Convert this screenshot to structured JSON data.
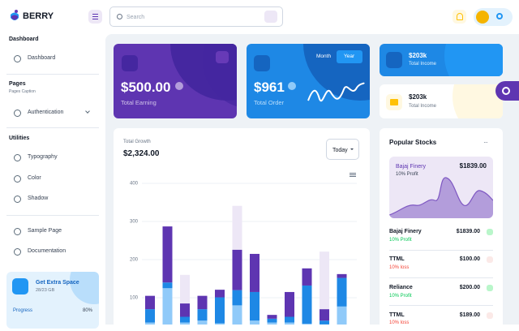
{
  "header": {
    "brand": "BERRY",
    "search_placeholder": "Search"
  },
  "sidebar": {
    "groups": [
      {
        "title": "Dashboard",
        "items": [
          "Dashboard"
        ]
      },
      {
        "title": "Pages",
        "caption": "Pages Caption",
        "items": [
          "Authentication"
        ]
      },
      {
        "title": "Utilities",
        "items": [
          "Typography",
          "Color",
          "Shadow"
        ]
      },
      {
        "items": [
          "Sample Page",
          "Documentation"
        ]
      }
    ],
    "promo": {
      "title": "Get Extra Space",
      "detail": "28/23 GB",
      "progress_label": "Progress",
      "progress_value": "80%"
    }
  },
  "cards": {
    "earning": {
      "value": "$500.00",
      "label": "Total Earning"
    },
    "order": {
      "value": "$961",
      "label": "Total Order",
      "toggle": [
        "Month",
        "Year"
      ]
    },
    "income": [
      {
        "value": "$203k",
        "label": "Total Income"
      },
      {
        "value": "$203k",
        "label": "Total Income"
      }
    ]
  },
  "growth": {
    "label": "Total Growth",
    "value": "$2,324.00",
    "period": "Today"
  },
  "chart_data": {
    "type": "stacked-bar",
    "ylim": [
      0,
      400
    ],
    "yticks": [
      100,
      200,
      300,
      400
    ],
    "grid": true,
    "series": [
      {
        "color": "#90caf9",
        "values": [
          35,
          125,
          35,
          40,
          33,
          80,
          40,
          35,
          35,
          32,
          30,
          77
        ]
      },
      {
        "color": "#1e88e5",
        "values": [
          35,
          15,
          15,
          30,
          68,
          40,
          75,
          10,
          15,
          100,
          10,
          75
        ]
      },
      {
        "color": "#5e35b1",
        "values": [
          35,
          147,
          35,
          35,
          20,
          106,
          100,
          10,
          65,
          45,
          30,
          10
        ]
      },
      {
        "color": "#ede7f6",
        "values": [
          0,
          0,
          75,
          0,
          0,
          115,
          0,
          0,
          0,
          0,
          151,
          0
        ]
      }
    ]
  },
  "stocks": {
    "title": "Popular Stocks",
    "featured": {
      "name": "Bajaj Finery",
      "price": "$1839.00",
      "change": "10% Profit"
    },
    "items": [
      {
        "name": "Bajaj Finery",
        "price": "$1839.00",
        "change": "10% Profit"
      },
      {
        "name": "TTML",
        "price": "$100.00",
        "change": "10% loss"
      },
      {
        "name": "Reliance",
        "price": "$200.00",
        "change": "10% Profit"
      },
      {
        "name": "TTML",
        "price": "$189.00",
        "change": "10% loss"
      }
    ]
  }
}
